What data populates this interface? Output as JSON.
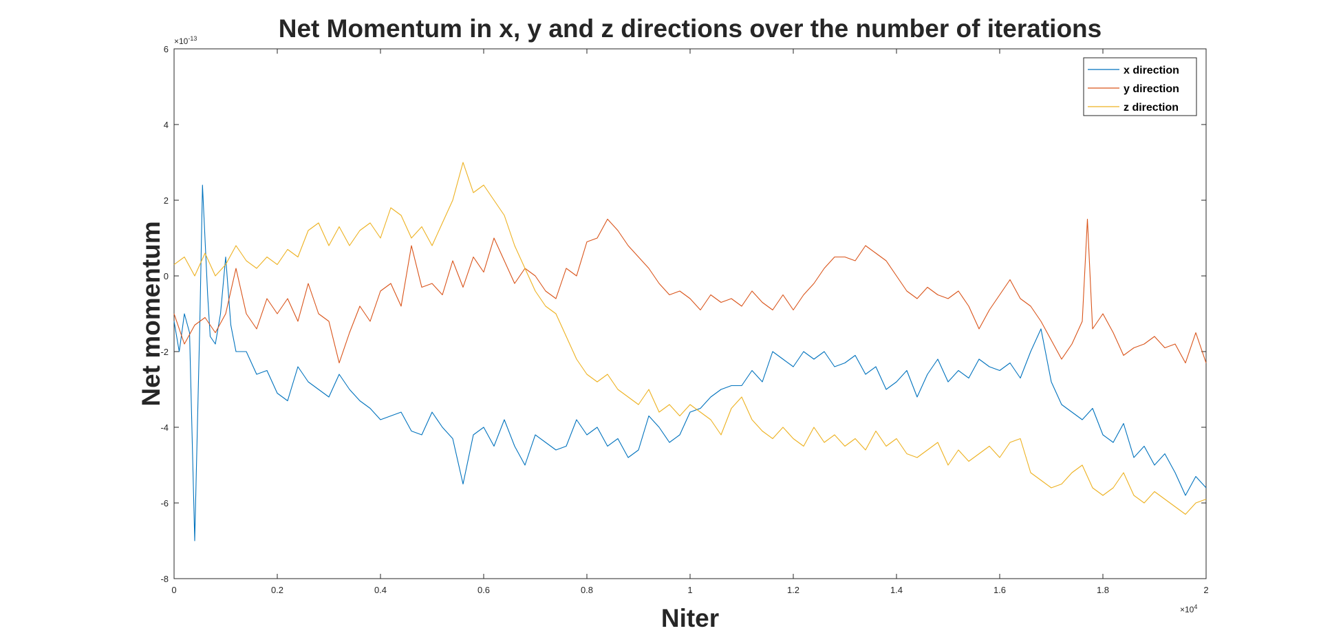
{
  "chart_data": {
    "type": "line",
    "title": "Net Momentum in x, y and z directions over the number of iterations",
    "xlabel": "Niter",
    "ylabel": "Net momentum",
    "x_exponent_base": "×10",
    "x_exponent_power": "4",
    "y_exponent_base": "×10",
    "y_exponent_power": "-13",
    "xlim": [
      0,
      2
    ],
    "ylim": [
      -8,
      6
    ],
    "x_ticks": [
      "0",
      "0.2",
      "0.4",
      "0.6",
      "0.8",
      "1",
      "1.2",
      "1.4",
      "1.6",
      "1.8",
      "2"
    ],
    "y_ticks": [
      "-8",
      "-6",
      "-4",
      "-2",
      "0",
      "2",
      "4",
      "6"
    ],
    "grid": false,
    "legend_position": "top-right",
    "series": [
      {
        "name": "x direction",
        "color": "#0072BD",
        "points": [
          [
            0,
            -1.2
          ],
          [
            0.01,
            -2.0
          ],
          [
            0.02,
            -1.0
          ],
          [
            0.03,
            -1.5
          ],
          [
            0.04,
            -7.0
          ],
          [
            0.05,
            -1.2
          ],
          [
            0.055,
            2.4
          ],
          [
            0.065,
            -0.5
          ],
          [
            0.07,
            -1.6
          ],
          [
            0.08,
            -1.8
          ],
          [
            0.09,
            -1.0
          ],
          [
            0.1,
            0.5
          ],
          [
            0.11,
            -1.3
          ],
          [
            0.12,
            -2.0
          ],
          [
            0.14,
            -2.0
          ],
          [
            0.16,
            -2.6
          ],
          [
            0.18,
            -2.5
          ],
          [
            0.2,
            -3.1
          ],
          [
            0.22,
            -3.3
          ],
          [
            0.24,
            -2.4
          ],
          [
            0.26,
            -2.8
          ],
          [
            0.28,
            -3.0
          ],
          [
            0.3,
            -3.2
          ],
          [
            0.32,
            -2.6
          ],
          [
            0.34,
            -3.0
          ],
          [
            0.36,
            -3.3
          ],
          [
            0.38,
            -3.5
          ],
          [
            0.4,
            -3.8
          ],
          [
            0.42,
            -3.7
          ],
          [
            0.44,
            -3.6
          ],
          [
            0.46,
            -4.1
          ],
          [
            0.48,
            -4.2
          ],
          [
            0.5,
            -3.6
          ],
          [
            0.52,
            -4.0
          ],
          [
            0.54,
            -4.3
          ],
          [
            0.56,
            -5.5
          ],
          [
            0.58,
            -4.2
          ],
          [
            0.6,
            -4.0
          ],
          [
            0.62,
            -4.5
          ],
          [
            0.64,
            -3.8
          ],
          [
            0.66,
            -4.5
          ],
          [
            0.68,
            -5.0
          ],
          [
            0.7,
            -4.2
          ],
          [
            0.72,
            -4.4
          ],
          [
            0.74,
            -4.6
          ],
          [
            0.76,
            -4.5
          ],
          [
            0.78,
            -3.8
          ],
          [
            0.8,
            -4.2
          ],
          [
            0.82,
            -4.0
          ],
          [
            0.84,
            -4.5
          ],
          [
            0.86,
            -4.3
          ],
          [
            0.88,
            -4.8
          ],
          [
            0.9,
            -4.6
          ],
          [
            0.92,
            -3.7
          ],
          [
            0.94,
            -4.0
          ],
          [
            0.96,
            -4.4
          ],
          [
            0.98,
            -4.2
          ],
          [
            1.0,
            -3.6
          ],
          [
            1.02,
            -3.5
          ],
          [
            1.04,
            -3.2
          ],
          [
            1.06,
            -3.0
          ],
          [
            1.08,
            -2.9
          ],
          [
            1.1,
            -2.9
          ],
          [
            1.12,
            -2.5
          ],
          [
            1.14,
            -2.8
          ],
          [
            1.16,
            -2.0
          ],
          [
            1.18,
            -2.2
          ],
          [
            1.2,
            -2.4
          ],
          [
            1.22,
            -2.0
          ],
          [
            1.24,
            -2.2
          ],
          [
            1.26,
            -2.0
          ],
          [
            1.28,
            -2.4
          ],
          [
            1.3,
            -2.3
          ],
          [
            1.32,
            -2.1
          ],
          [
            1.34,
            -2.6
          ],
          [
            1.36,
            -2.4
          ],
          [
            1.38,
            -3.0
          ],
          [
            1.4,
            -2.8
          ],
          [
            1.42,
            -2.5
          ],
          [
            1.44,
            -3.2
          ],
          [
            1.46,
            -2.6
          ],
          [
            1.48,
            -2.2
          ],
          [
            1.5,
            -2.8
          ],
          [
            1.52,
            -2.5
          ],
          [
            1.54,
            -2.7
          ],
          [
            1.56,
            -2.2
          ],
          [
            1.58,
            -2.4
          ],
          [
            1.6,
            -2.5
          ],
          [
            1.62,
            -2.3
          ],
          [
            1.64,
            -2.7
          ],
          [
            1.66,
            -2.0
          ],
          [
            1.68,
            -1.4
          ],
          [
            1.7,
            -2.8
          ],
          [
            1.72,
            -3.4
          ],
          [
            1.74,
            -3.6
          ],
          [
            1.76,
            -3.8
          ],
          [
            1.78,
            -3.5
          ],
          [
            1.8,
            -4.2
          ],
          [
            1.82,
            -4.4
          ],
          [
            1.84,
            -3.9
          ],
          [
            1.86,
            -4.8
          ],
          [
            1.88,
            -4.5
          ],
          [
            1.9,
            -5.0
          ],
          [
            1.92,
            -4.7
          ],
          [
            1.94,
            -5.2
          ],
          [
            1.96,
            -5.8
          ],
          [
            1.98,
            -5.3
          ],
          [
            2.0,
            -5.6
          ]
        ]
      },
      {
        "name": "y direction",
        "color": "#D95319",
        "points": [
          [
            0,
            -1.0
          ],
          [
            0.02,
            -1.8
          ],
          [
            0.04,
            -1.3
          ],
          [
            0.06,
            -1.1
          ],
          [
            0.08,
            -1.5
          ],
          [
            0.1,
            -1.0
          ],
          [
            0.12,
            0.2
          ],
          [
            0.14,
            -1.0
          ],
          [
            0.16,
            -1.4
          ],
          [
            0.18,
            -0.6
          ],
          [
            0.2,
            -1.0
          ],
          [
            0.22,
            -0.6
          ],
          [
            0.24,
            -1.2
          ],
          [
            0.26,
            -0.2
          ],
          [
            0.28,
            -1.0
          ],
          [
            0.3,
            -1.2
          ],
          [
            0.32,
            -2.3
          ],
          [
            0.34,
            -1.5
          ],
          [
            0.36,
            -0.8
          ],
          [
            0.38,
            -1.2
          ],
          [
            0.4,
            -0.4
          ],
          [
            0.42,
            -0.2
          ],
          [
            0.44,
            -0.8
          ],
          [
            0.46,
            0.8
          ],
          [
            0.48,
            -0.3
          ],
          [
            0.5,
            -0.2
          ],
          [
            0.52,
            -0.5
          ],
          [
            0.54,
            0.4
          ],
          [
            0.56,
            -0.3
          ],
          [
            0.58,
            0.5
          ],
          [
            0.6,
            0.1
          ],
          [
            0.62,
            1.0
          ],
          [
            0.64,
            0.4
          ],
          [
            0.66,
            -0.2
          ],
          [
            0.68,
            0.2
          ],
          [
            0.7,
            0.0
          ],
          [
            0.72,
            -0.4
          ],
          [
            0.74,
            -0.6
          ],
          [
            0.76,
            0.2
          ],
          [
            0.78,
            0.0
          ],
          [
            0.8,
            0.9
          ],
          [
            0.82,
            1.0
          ],
          [
            0.84,
            1.5
          ],
          [
            0.86,
            1.2
          ],
          [
            0.88,
            0.8
          ],
          [
            0.9,
            0.5
          ],
          [
            0.92,
            0.2
          ],
          [
            0.94,
            -0.2
          ],
          [
            0.96,
            -0.5
          ],
          [
            0.98,
            -0.4
          ],
          [
            1.0,
            -0.6
          ],
          [
            1.02,
            -0.9
          ],
          [
            1.04,
            -0.5
          ],
          [
            1.06,
            -0.7
          ],
          [
            1.08,
            -0.6
          ],
          [
            1.1,
            -0.8
          ],
          [
            1.12,
            -0.4
          ],
          [
            1.14,
            -0.7
          ],
          [
            1.16,
            -0.9
          ],
          [
            1.18,
            -0.5
          ],
          [
            1.2,
            -0.9
          ],
          [
            1.22,
            -0.5
          ],
          [
            1.24,
            -0.2
          ],
          [
            1.26,
            0.2
          ],
          [
            1.28,
            0.5
          ],
          [
            1.3,
            0.5
          ],
          [
            1.32,
            0.4
          ],
          [
            1.34,
            0.8
          ],
          [
            1.36,
            0.6
          ],
          [
            1.38,
            0.4
          ],
          [
            1.4,
            0.0
          ],
          [
            1.42,
            -0.4
          ],
          [
            1.44,
            -0.6
          ],
          [
            1.46,
            -0.3
          ],
          [
            1.48,
            -0.5
          ],
          [
            1.5,
            -0.6
          ],
          [
            1.52,
            -0.4
          ],
          [
            1.54,
            -0.8
          ],
          [
            1.56,
            -1.4
          ],
          [
            1.58,
            -0.9
          ],
          [
            1.6,
            -0.5
          ],
          [
            1.62,
            -0.1
          ],
          [
            1.64,
            -0.6
          ],
          [
            1.66,
            -0.8
          ],
          [
            1.68,
            -1.2
          ],
          [
            1.7,
            -1.7
          ],
          [
            1.72,
            -2.2
          ],
          [
            1.74,
            -1.8
          ],
          [
            1.76,
            -1.2
          ],
          [
            1.77,
            1.5
          ],
          [
            1.78,
            -1.4
          ],
          [
            1.8,
            -1.0
          ],
          [
            1.82,
            -1.5
          ],
          [
            1.84,
            -2.1
          ],
          [
            1.86,
            -1.9
          ],
          [
            1.88,
            -1.8
          ],
          [
            1.9,
            -1.6
          ],
          [
            1.92,
            -1.9
          ],
          [
            1.94,
            -1.8
          ],
          [
            1.96,
            -2.3
          ],
          [
            1.98,
            -1.5
          ],
          [
            2.0,
            -2.3
          ]
        ]
      },
      {
        "name": "z direction",
        "color": "#EDB120",
        "points": [
          [
            0,
            0.3
          ],
          [
            0.02,
            0.5
          ],
          [
            0.04,
            0.0
          ],
          [
            0.06,
            0.6
          ],
          [
            0.08,
            0.0
          ],
          [
            0.1,
            0.3
          ],
          [
            0.12,
            0.8
          ],
          [
            0.14,
            0.4
          ],
          [
            0.16,
            0.2
          ],
          [
            0.18,
            0.5
          ],
          [
            0.2,
            0.3
          ],
          [
            0.22,
            0.7
          ],
          [
            0.24,
            0.5
          ],
          [
            0.26,
            1.2
          ],
          [
            0.28,
            1.4
          ],
          [
            0.3,
            0.8
          ],
          [
            0.32,
            1.3
          ],
          [
            0.34,
            0.8
          ],
          [
            0.36,
            1.2
          ],
          [
            0.38,
            1.4
          ],
          [
            0.4,
            1.0
          ],
          [
            0.42,
            1.8
          ],
          [
            0.44,
            1.6
          ],
          [
            0.46,
            1.0
          ],
          [
            0.48,
            1.3
          ],
          [
            0.5,
            0.8
          ],
          [
            0.52,
            1.4
          ],
          [
            0.54,
            2.0
          ],
          [
            0.56,
            3.0
          ],
          [
            0.58,
            2.2
          ],
          [
            0.6,
            2.4
          ],
          [
            0.62,
            2.0
          ],
          [
            0.64,
            1.6
          ],
          [
            0.66,
            0.8
          ],
          [
            0.68,
            0.2
          ],
          [
            0.7,
            -0.4
          ],
          [
            0.72,
            -0.8
          ],
          [
            0.74,
            -1.0
          ],
          [
            0.76,
            -1.6
          ],
          [
            0.78,
            -2.2
          ],
          [
            0.8,
            -2.6
          ],
          [
            0.82,
            -2.8
          ],
          [
            0.84,
            -2.6
          ],
          [
            0.86,
            -3.0
          ],
          [
            0.88,
            -3.2
          ],
          [
            0.9,
            -3.4
          ],
          [
            0.92,
            -3.0
          ],
          [
            0.94,
            -3.6
          ],
          [
            0.96,
            -3.4
          ],
          [
            0.98,
            -3.7
          ],
          [
            1.0,
            -3.4
          ],
          [
            1.02,
            -3.6
          ],
          [
            1.04,
            -3.8
          ],
          [
            1.06,
            -4.2
          ],
          [
            1.08,
            -3.5
          ],
          [
            1.1,
            -3.2
          ],
          [
            1.12,
            -3.8
          ],
          [
            1.14,
            -4.1
          ],
          [
            1.16,
            -4.3
          ],
          [
            1.18,
            -4.0
          ],
          [
            1.2,
            -4.3
          ],
          [
            1.22,
            -4.5
          ],
          [
            1.24,
            -4.0
          ],
          [
            1.26,
            -4.4
          ],
          [
            1.28,
            -4.2
          ],
          [
            1.3,
            -4.5
          ],
          [
            1.32,
            -4.3
          ],
          [
            1.34,
            -4.6
          ],
          [
            1.36,
            -4.1
          ],
          [
            1.38,
            -4.5
          ],
          [
            1.4,
            -4.3
          ],
          [
            1.42,
            -4.7
          ],
          [
            1.44,
            -4.8
          ],
          [
            1.46,
            -4.6
          ],
          [
            1.48,
            -4.4
          ],
          [
            1.5,
            -5.0
          ],
          [
            1.52,
            -4.6
          ],
          [
            1.54,
            -4.9
          ],
          [
            1.56,
            -4.7
          ],
          [
            1.58,
            -4.5
          ],
          [
            1.6,
            -4.8
          ],
          [
            1.62,
            -4.4
          ],
          [
            1.64,
            -4.3
          ],
          [
            1.66,
            -5.2
          ],
          [
            1.68,
            -5.4
          ],
          [
            1.7,
            -5.6
          ],
          [
            1.72,
            -5.5
          ],
          [
            1.74,
            -5.2
          ],
          [
            1.76,
            -5.0
          ],
          [
            1.78,
            -5.6
          ],
          [
            1.8,
            -5.8
          ],
          [
            1.82,
            -5.6
          ],
          [
            1.84,
            -5.2
          ],
          [
            1.86,
            -5.8
          ],
          [
            1.88,
            -6.0
          ],
          [
            1.9,
            -5.7
          ],
          [
            1.92,
            -5.9
          ],
          [
            1.94,
            -6.1
          ],
          [
            1.96,
            -6.3
          ],
          [
            1.98,
            -6.0
          ],
          [
            2.0,
            -5.9
          ]
        ]
      }
    ]
  }
}
